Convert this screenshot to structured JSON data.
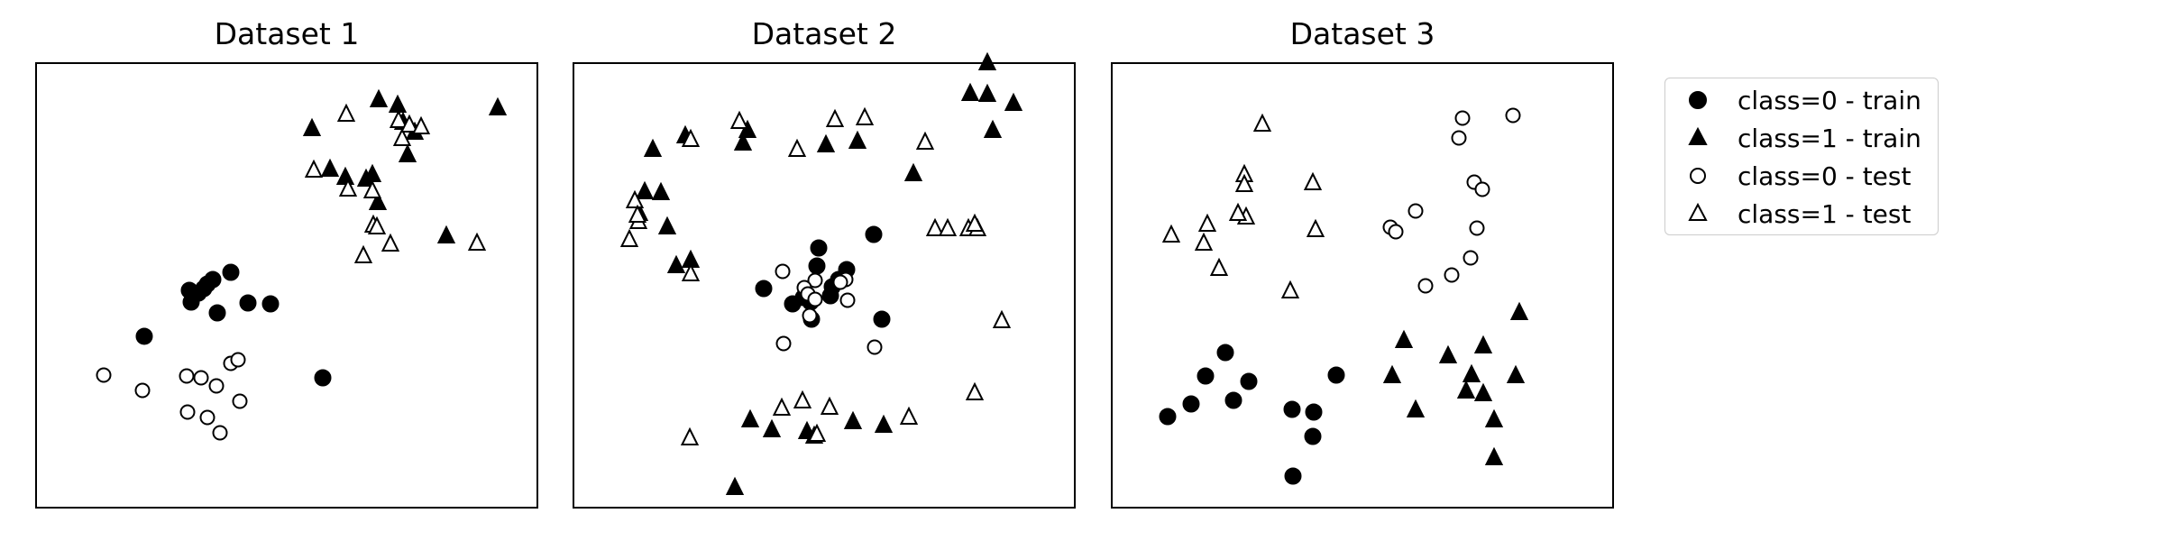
{
  "chart_data": [
    {
      "type": "scatter",
      "title": "Dataset 1",
      "xlabel": "",
      "ylabel": "",
      "grid": false,
      "ticks": false,
      "xlim": [
        0,
        556
      ],
      "ylim": [
        0,
        493
      ],
      "series": [
        {
          "name": "class=0 - train",
          "marker": "circle",
          "filled": true,
          "points": [
            [
              170,
              241
            ],
            [
              120,
              190
            ],
            [
              216,
              261
            ],
            [
              190,
              248
            ],
            [
              172,
              228
            ],
            [
              180,
              238
            ],
            [
              196,
              253
            ],
            [
              186,
              243
            ],
            [
              260,
              226
            ],
            [
              201,
              216
            ],
            [
              235,
              227
            ],
            [
              318,
              144
            ]
          ]
        },
        {
          "name": "class=1 - train",
          "marker": "triangle",
          "filled": true,
          "points": [
            [
              306,
              420
            ],
            [
              380,
              452
            ],
            [
              401,
              446
            ],
            [
              407,
              427
            ],
            [
              420,
              416
            ],
            [
              412,
              391
            ],
            [
              326,
              375
            ],
            [
              343,
              366
            ],
            [
              366,
              364
            ],
            [
              373,
              369
            ],
            [
              379,
              338
            ],
            [
              455,
              301
            ],
            [
              512,
              443
            ]
          ]
        },
        {
          "name": "class=0 - test",
          "marker": "circle",
          "filled": false,
          "points": [
            [
              75,
              147
            ],
            [
              118,
              130
            ],
            [
              167,
              146
            ],
            [
              183,
              144
            ],
            [
              200,
              135
            ],
            [
              216,
              160
            ],
            [
              224,
              164
            ],
            [
              168,
              106
            ],
            [
              190,
              100
            ],
            [
              204,
              83
            ],
            [
              226,
              118
            ]
          ]
        },
        {
          "name": "class=1 - test",
          "marker": "triangle",
          "filled": false,
          "points": [
            [
              344,
              436
            ],
            [
              402,
              429
            ],
            [
              406,
              409
            ],
            [
              414,
              424
            ],
            [
              427,
              422
            ],
            [
              308,
              374
            ],
            [
              346,
              353
            ],
            [
              373,
              351
            ],
            [
              374,
              313
            ],
            [
              378,
              311
            ],
            [
              393,
              292
            ],
            [
              363,
              279
            ],
            [
              489,
              293
            ]
          ]
        }
      ]
    },
    {
      "type": "scatter",
      "title": "Dataset 2",
      "xlabel": "",
      "ylabel": "",
      "grid": false,
      "ticks": false,
      "xlim": [
        0,
        556
      ],
      "ylim": [
        0,
        493
      ],
      "series": [
        {
          "name": "class=0 - train",
          "marker": "circle",
          "filled": true,
          "points": [
            [
              272,
              288
            ],
            [
              270,
              268
            ],
            [
              303,
              264
            ],
            [
              294,
              253
            ],
            [
              287,
              245
            ],
            [
              285,
              235
            ],
            [
              263,
              228
            ],
            [
              255,
              233
            ],
            [
              211,
              243
            ],
            [
              243,
              226
            ],
            [
              264,
              209
            ],
            [
              333,
              303
            ],
            [
              342,
              209
            ]
          ]
        },
        {
          "name": "class=1 - train",
          "marker": "triangle",
          "filled": true,
          "points": [
            [
              88,
              397
            ],
            [
              124,
              412
            ],
            [
              193,
              418
            ],
            [
              280,
              402
            ],
            [
              315,
              406
            ],
            [
              188,
              404
            ],
            [
              377,
              370
            ],
            [
              440,
              459
            ],
            [
              465,
              418
            ],
            [
              488,
              448
            ],
            [
              459,
              458
            ],
            [
              459,
              493
            ],
            [
              97,
              349
            ],
            [
              79,
              350
            ],
            [
              73,
              326
            ],
            [
              104,
              311
            ],
            [
              130,
              274
            ],
            [
              114,
              268
            ],
            [
              196,
              97
            ],
            [
              220,
              86
            ],
            [
              259,
              84
            ],
            [
              310,
              95
            ],
            [
              344,
              91
            ],
            [
              267,
              79
            ],
            [
              179,
              22
            ]
          ]
        },
        {
          "name": "class=0 - test",
          "marker": "circle",
          "filled": false,
          "points": [
            [
              232,
              262
            ],
            [
              268,
              252
            ],
            [
              256,
              244
            ],
            [
              260,
              237
            ],
            [
              268,
              231
            ],
            [
              302,
              253
            ],
            [
              296,
              250
            ],
            [
              262,
              213
            ],
            [
              304,
              230
            ],
            [
              233,
              182
            ],
            [
              334,
              178
            ]
          ]
        },
        {
          "name": "class=1 - test",
          "marker": "triangle",
          "filled": false,
          "points": [
            [
              184,
              428
            ],
            [
              130,
              408
            ],
            [
              290,
              430
            ],
            [
              323,
              432
            ],
            [
              248,
              397
            ],
            [
              390,
              405
            ],
            [
              68,
              340
            ],
            [
              72,
              317
            ],
            [
              62,
              297
            ],
            [
              71,
              324
            ],
            [
              130,
              259
            ],
            [
              401,
              309
            ],
            [
              415,
              309
            ],
            [
              438,
              309
            ],
            [
              448,
              309
            ],
            [
              445,
              314
            ],
            [
              475,
              207
            ],
            [
              445,
              127
            ],
            [
              372,
              100
            ],
            [
              254,
              118
            ],
            [
              270,
              81
            ],
            [
              231,
              110
            ],
            [
              284,
              111
            ],
            [
              129,
              77
            ]
          ]
        }
      ]
    },
    {
      "type": "scatter",
      "title": "Dataset 3",
      "xlabel": "",
      "ylabel": "",
      "grid": false,
      "ticks": false,
      "xlim": [
        0,
        556
      ],
      "ylim": [
        0,
        493
      ],
      "series": [
        {
          "name": "class=0 - train",
          "marker": "circle",
          "filled": true,
          "points": [
            [
              62,
              101
            ],
            [
              88,
              115
            ],
            [
              104,
              146
            ],
            [
              126,
              172
            ],
            [
              135,
              119
            ],
            [
              152,
              140
            ],
            [
              200,
              109
            ],
            [
              224,
              106
            ],
            [
              249,
              147
            ],
            [
              223,
              79
            ],
            [
              201,
              35
            ]
          ]
        },
        {
          "name": "class=1 - train",
          "marker": "triangle",
          "filled": true,
          "points": [
            [
              311,
              146
            ],
            [
              324,
              185
            ],
            [
              337,
              108
            ],
            [
              373,
              168
            ],
            [
              412,
              179
            ],
            [
              399,
              147
            ],
            [
              412,
              126
            ],
            [
              393,
              129
            ],
            [
              424,
              97
            ],
            [
              452,
              216
            ],
            [
              448,
              146
            ],
            [
              424,
              55
            ]
          ]
        },
        {
          "name": "class=0 - test",
          "marker": "circle",
          "filled": false,
          "points": [
            [
              389,
              432
            ],
            [
              445,
              435
            ],
            [
              385,
              410
            ],
            [
              402,
              361
            ],
            [
              411,
              353
            ],
            [
              337,
              329
            ],
            [
              309,
              311
            ],
            [
              315,
              306
            ],
            [
              405,
              310
            ],
            [
              398,
              277
            ],
            [
              377,
              258
            ],
            [
              348,
              246
            ]
          ]
        },
        {
          "name": "class=1 - test",
          "marker": "triangle",
          "filled": false,
          "points": [
            [
              167,
              425
            ],
            [
              147,
              369
            ],
            [
              147,
              358
            ],
            [
              223,
              360
            ],
            [
              149,
              322
            ],
            [
              140,
              326
            ],
            [
              226,
              308
            ],
            [
              106,
              314
            ],
            [
              66,
              302
            ],
            [
              102,
              293
            ],
            [
              119,
              265
            ],
            [
              198,
              240
            ]
          ]
        }
      ]
    }
  ],
  "legend": {
    "items": [
      {
        "label": "class=0 - train",
        "marker": "circle",
        "filled": true
      },
      {
        "label": "class=1 - train",
        "marker": "triangle",
        "filled": true
      },
      {
        "label": "class=0 - test",
        "marker": "circle",
        "filled": false
      },
      {
        "label": "class=1 - test",
        "marker": "triangle",
        "filled": false
      }
    ]
  },
  "colors": {
    "marker": "#000000",
    "axes": "#000000",
    "legend_border": "#cccccc"
  }
}
